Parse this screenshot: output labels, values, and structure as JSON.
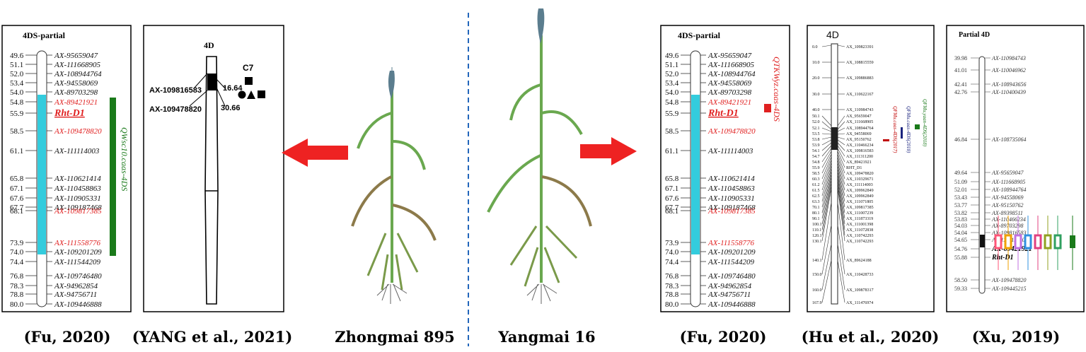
{
  "captions": [
    "(Fu, 2020)",
    "(YANG et al., 2021)",
    "Zhongmai 895",
    "Yangmai 16",
    "(Fu, 2020)",
    "(Hu et al., 2020)",
    "(Xu, 2019)"
  ],
  "colors": {
    "chromosome_fill": "#33ccdd",
    "highlight": "#e02020",
    "qtl_green": "#1a7a1a",
    "arrow": "#ee2222",
    "divider": "#2266bb"
  },
  "fu_map": {
    "title": "4DS-partial",
    "markers": [
      {
        "pos": "49.6",
        "name": "AX-95659047",
        "red": false
      },
      {
        "pos": "51.1",
        "name": "AX-111668905",
        "red": false
      },
      {
        "pos": "52.0",
        "name": "AX-108944764",
        "red": false
      },
      {
        "pos": "53.4",
        "name": "AX-94558069",
        "red": false
      },
      {
        "pos": "54.0",
        "name": "AX-89703298",
        "red": false
      },
      {
        "pos": "54.8",
        "name": "AX-89421921",
        "red": true
      },
      {
        "pos": "55.9",
        "name": "Rht-D1",
        "red": true,
        "gene": true
      },
      {
        "pos": "58.5",
        "name": "AX-109478820",
        "red": true
      },
      {
        "pos": "61.1",
        "name": "AX-111114003",
        "red": false
      },
      {
        "pos": "65.8",
        "name": "AX-110621414",
        "red": false
      },
      {
        "pos": "67.1",
        "name": "AX-110458863",
        "red": false
      },
      {
        "pos": "67.6",
        "name": "AX-110905331",
        "red": false
      },
      {
        "pos": "67.7",
        "name": "AX-109187468",
        "red": false
      },
      {
        "pos": "68.1",
        "name": "AX-109817385",
        "red": true
      },
      {
        "pos": "73.9",
        "name": "AX-111558776",
        "red": true
      },
      {
        "pos": "74.0",
        "name": "AX-109201209",
        "red": false
      },
      {
        "pos": "74.4",
        "name": "AX-111544209",
        "red": false
      },
      {
        "pos": "76.8",
        "name": "AX-109746480",
        "red": false
      },
      {
        "pos": "78.3",
        "name": "AX-94962854",
        "red": false
      },
      {
        "pos": "78.8",
        "name": "AX-94756711",
        "red": false
      },
      {
        "pos": "80.0",
        "name": "AX-109446888",
        "red": false
      }
    ],
    "qtl_left": "QWsc10.caas-4DS",
    "qtl_right": "QTKWyz.caas-4DS"
  },
  "yang_map": {
    "title": "4D",
    "marker1": "AX-109816583",
    "marker2": "AX-109478820",
    "pos1": "16.64",
    "pos2": "30.66",
    "legend": "C7"
  },
  "hu_map": {
    "title": "4D",
    "markers": [
      {
        "pos": "0.0",
        "name": "AX_109823391"
      },
      {
        "pos": "10.0",
        "name": "AX_108815559"
      },
      {
        "pos": "20.0",
        "name": "AX_109886883"
      },
      {
        "pos": "30.0",
        "name": "AX_110622167"
      },
      {
        "pos": "40.0",
        "name": "AX_110984743"
      },
      {
        "pos": "50.1",
        "name": "AX_95659047"
      },
      {
        "pos": "52.0",
        "name": "AX_111668905"
      },
      {
        "pos": "52.1",
        "name": "AX_108944764"
      },
      {
        "pos": "53.5",
        "name": "AX_94558069"
      },
      {
        "pos": "53.8",
        "name": "AX_95150762"
      },
      {
        "pos": "53.9",
        "name": "AX_110466234"
      },
      {
        "pos": "54.1",
        "name": "AX_109816583"
      },
      {
        "pos": "54.7",
        "name": "AX_111311200"
      },
      {
        "pos": "54.8",
        "name": "AX_89421921"
      },
      {
        "pos": "55.9",
        "name": "RHT_D1"
      },
      {
        "pos": "58.5",
        "name": "AX_109478820"
      },
      {
        "pos": "60.3",
        "name": "AX_110329671"
      },
      {
        "pos": "61.2",
        "name": "AX_111114003"
      },
      {
        "pos": "61.5",
        "name": "AX_109962849"
      },
      {
        "pos": "62.5",
        "name": "AX_109962849"
      },
      {
        "pos": "63.3",
        "name": "AX_111071805"
      },
      {
        "pos": "70.1",
        "name": "AX_109817385"
      },
      {
        "pos": "80.1",
        "name": "AX_111007239"
      },
      {
        "pos": "90.1",
        "name": "AX_111873319"
      },
      {
        "pos": "100.1",
        "name": "AX_111001398"
      },
      {
        "pos": "110.1",
        "name": "AX_111072838"
      },
      {
        "pos": "120.1",
        "name": "AX_110742293"
      },
      {
        "pos": "130.1",
        "name": "AX_110742293"
      },
      {
        "pos": "140.1",
        "name": "AX_89624188"
      },
      {
        "pos": "150.0",
        "name": "AX_110428733"
      },
      {
        "pos": "160.0",
        "name": "AX_109878317"
      },
      {
        "pos": "167.9",
        "name": "AX_111476974"
      }
    ],
    "qtls": [
      "QFMu.caas-4DS(2017)",
      "QFMu.caas-4DS(2018)",
      "QFMu.yaan-4DS(2018)"
    ]
  },
  "xu_map": {
    "title": "Partial 4D",
    "markers": [
      {
        "pos": "39.98",
        "name": "AX-110984743"
      },
      {
        "pos": "41.01",
        "name": "AX-110046962"
      },
      {
        "pos": "42.41",
        "name": "AX-108943656"
      },
      {
        "pos": "42.76",
        "name": "AX-110400439"
      },
      {
        "pos": "46.84",
        "name": "AX-108735064"
      },
      {
        "pos": "49.64",
        "name": "AX-95659047"
      },
      {
        "pos": "51.09",
        "name": "AX-111668905"
      },
      {
        "pos": "52.01",
        "name": "AX-108944764"
      },
      {
        "pos": "53.43",
        "name": "AX-94558069"
      },
      {
        "pos": "53.77",
        "name": "AX-95150762"
      },
      {
        "pos": "53.82",
        "name": "AX-89398511"
      },
      {
        "pos": "53.83",
        "name": "AX-110466234"
      },
      {
        "pos": "54.03",
        "name": "AX-89703298"
      },
      {
        "pos": "54.04",
        "name": "AX-109816583"
      },
      {
        "pos": "54.65",
        "name": "AX-111311200"
      },
      {
        "pos": "54.76",
        "name": "AX-89421921"
      },
      {
        "pos": "55.88",
        "name": "Rht-D1"
      },
      {
        "pos": "58.50",
        "name": "AX-109478820"
      },
      {
        "pos": "59.33",
        "name": "AX-109445215"
      }
    ]
  }
}
